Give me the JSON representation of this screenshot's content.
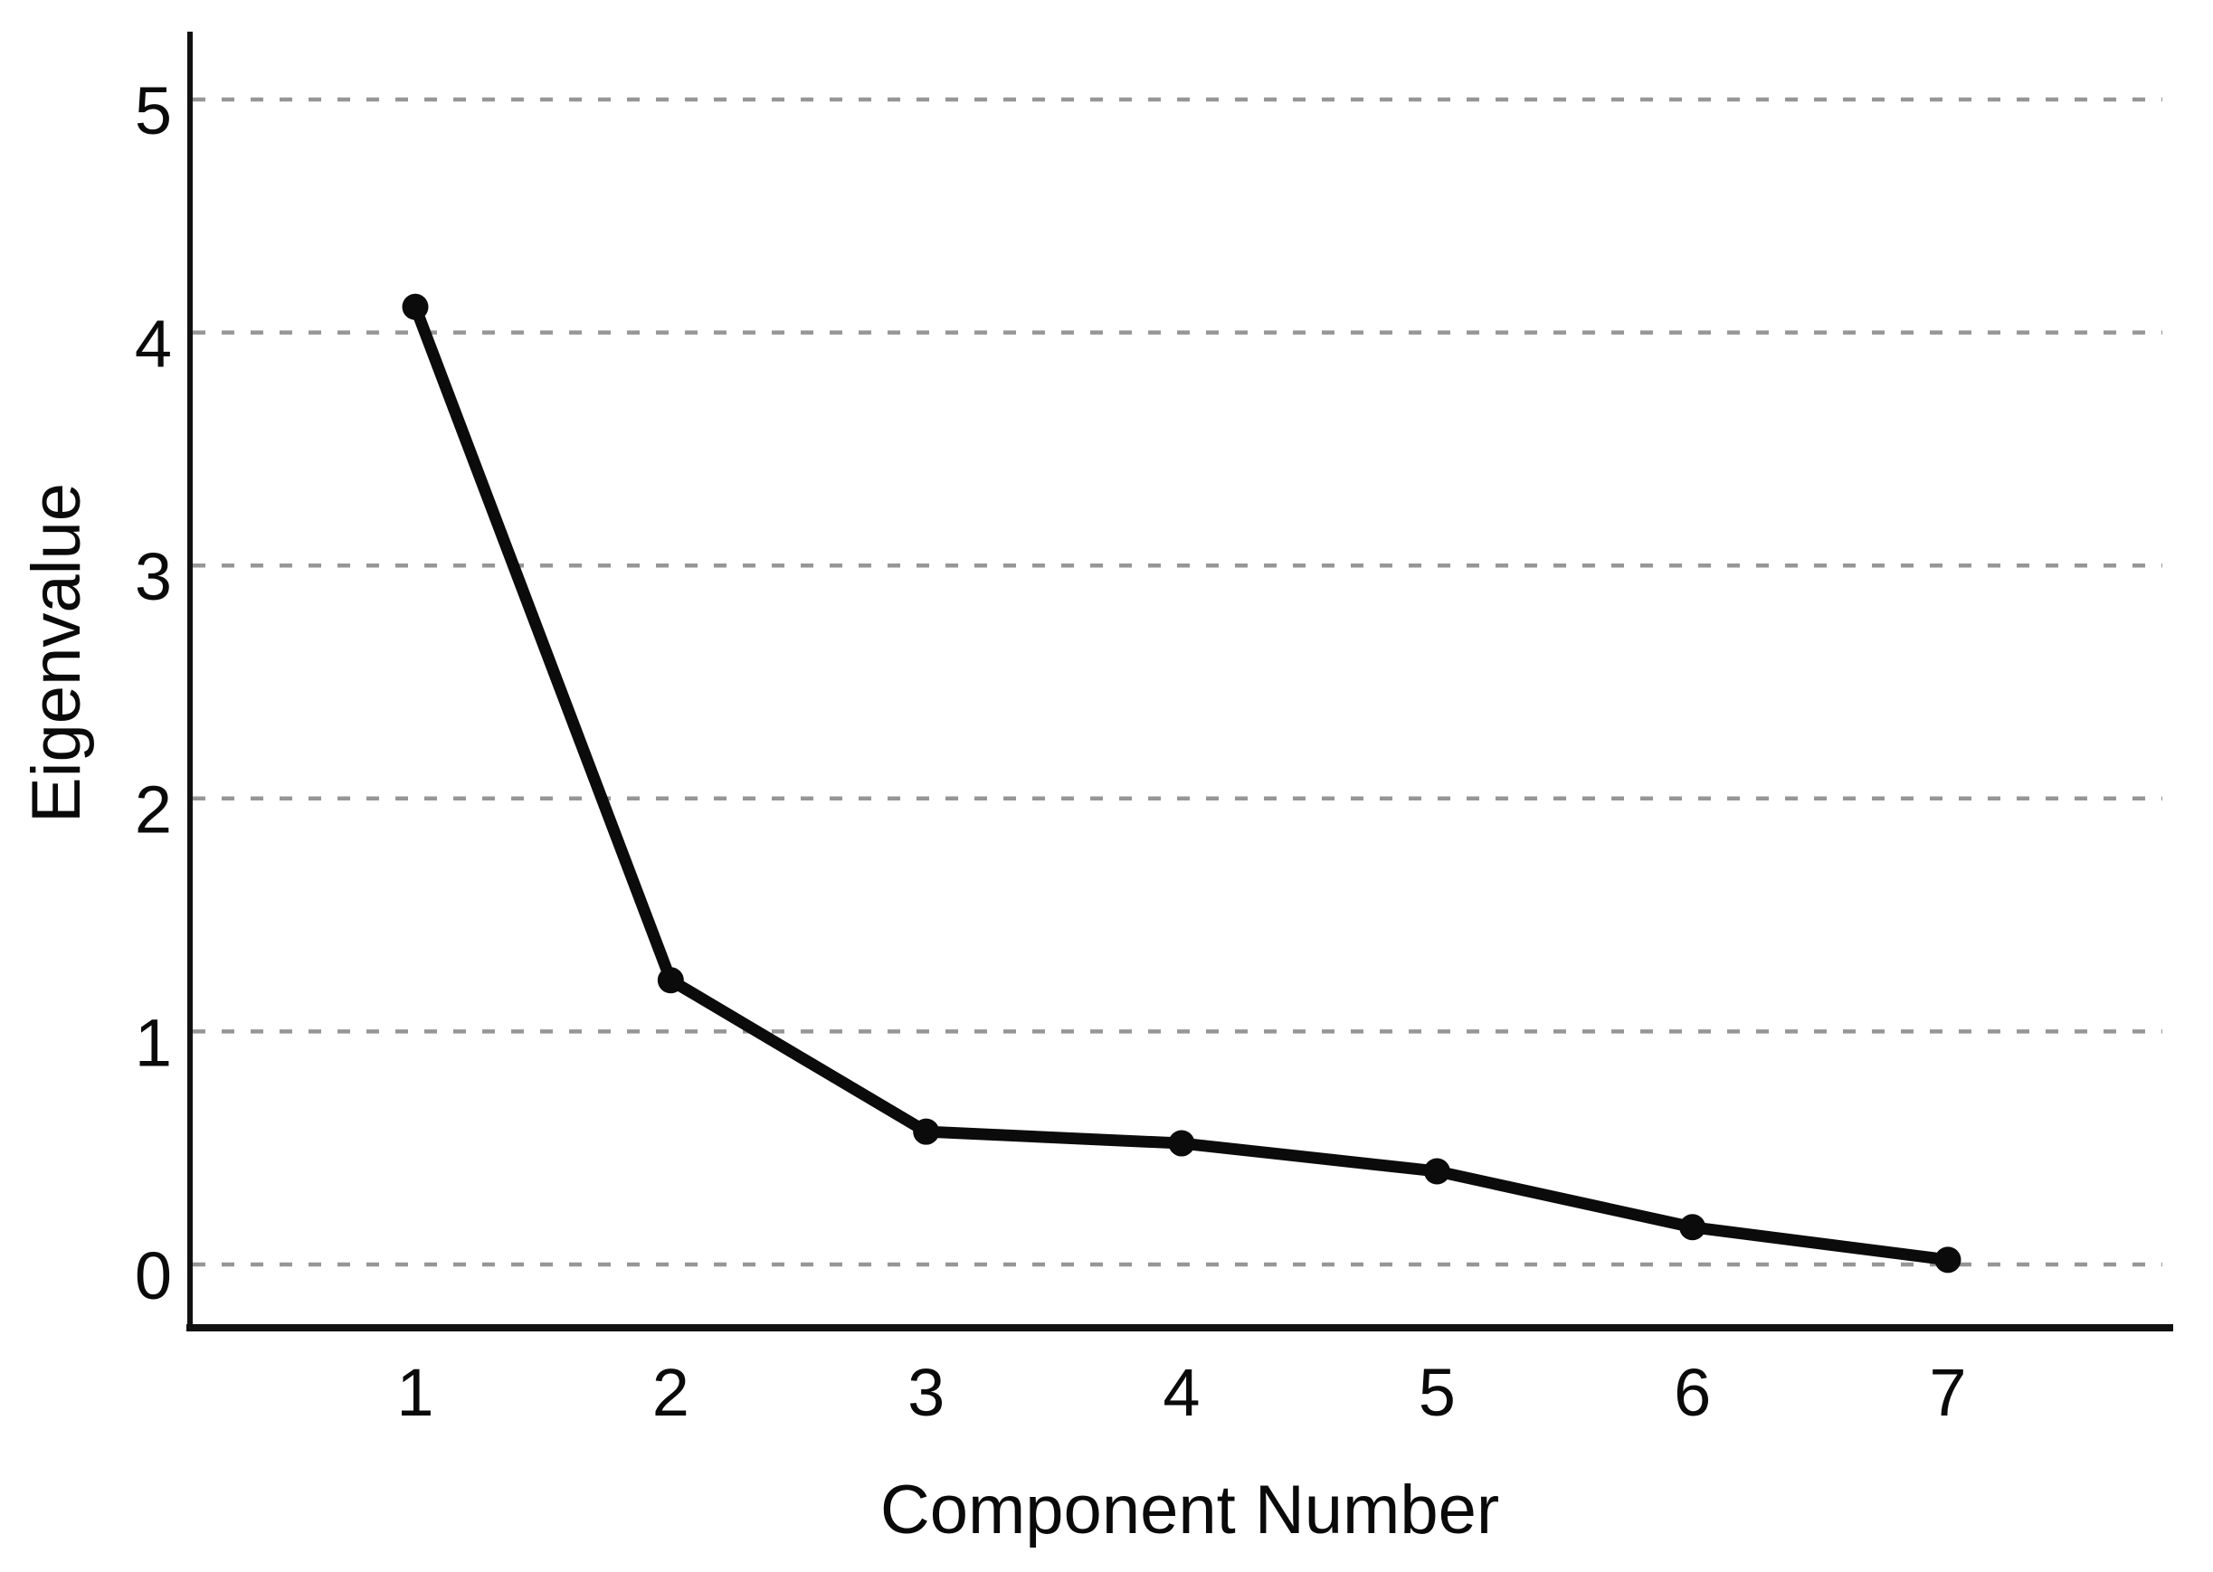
{
  "figure": {
    "background": "#ffffff",
    "text_color": "#0a0a0a"
  },
  "chart_data": {
    "type": "line",
    "title": "",
    "xlabel": "Component Number",
    "ylabel": "Eigenvalue",
    "categories": [
      1,
      2,
      3,
      4,
      5,
      6,
      7
    ],
    "series": [
      {
        "name": "Eigenvalue",
        "values": [
          4.11,
          1.22,
          0.57,
          0.52,
          0.4,
          0.16,
          0.02
        ]
      }
    ],
    "yticks": [
      0,
      1,
      2,
      3,
      4,
      5
    ],
    "ylim": [
      0,
      5.3
    ],
    "grid": "horizontal-dashed",
    "grid_color": "#969696",
    "legend": "none",
    "line_color": "#0b0b0b",
    "marker": "filled-circle",
    "marker_color": "#0b0b0b",
    "axis_color": "#111111"
  }
}
